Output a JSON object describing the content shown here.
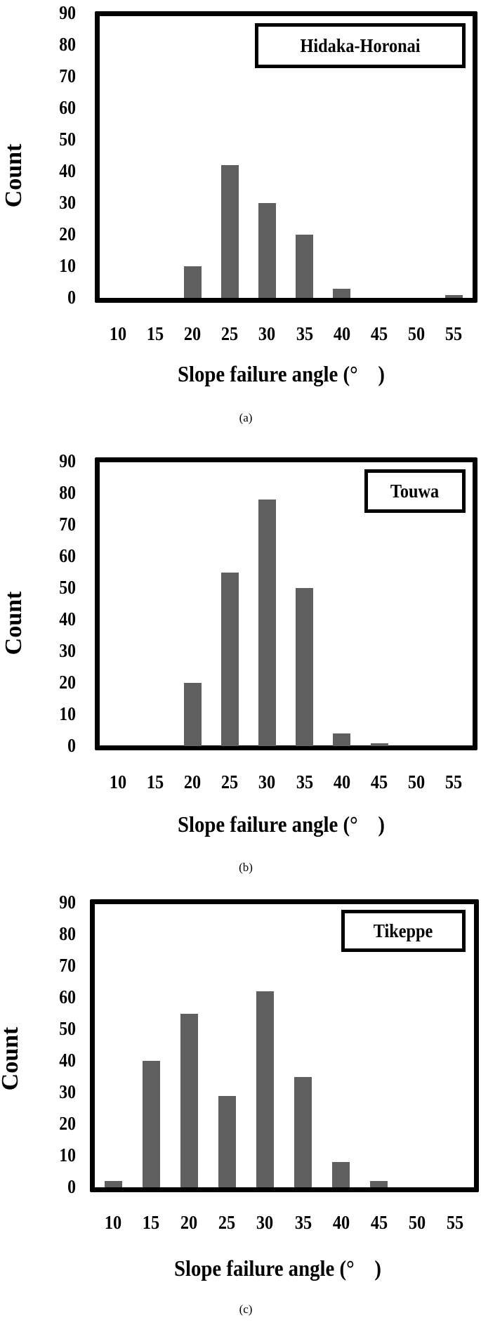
{
  "chart_data": [
    {
      "type": "bar",
      "panel": "(a)",
      "title": "Hidaka-Horonai",
      "xlabel": "Slope failure angle (° )",
      "ylabel": "Count",
      "categories": [
        "10",
        "15",
        "20",
        "25",
        "30",
        "35",
        "40",
        "45",
        "50",
        "55"
      ],
      "values": [
        0,
        0,
        10,
        42,
        30,
        20,
        3,
        0,
        0,
        1
      ],
      "yticks": [
        "0",
        "10",
        "20",
        "30",
        "40",
        "50",
        "60",
        "70",
        "80",
        "90"
      ],
      "ylim": [
        0,
        90
      ],
      "grid": false,
      "legend_position": "top-right",
      "bar_color": "#5f5f5f"
    },
    {
      "type": "bar",
      "panel": "(b)",
      "title": "Touwa",
      "xlabel": "Slope failure angle (° )",
      "ylabel": "Count",
      "categories": [
        "10",
        "15",
        "20",
        "25",
        "30",
        "35",
        "40",
        "45",
        "50",
        "55"
      ],
      "values": [
        0,
        0,
        20,
        55,
        78,
        50,
        4,
        1,
        0,
        0
      ],
      "yticks": [
        "0",
        "10",
        "20",
        "30",
        "40",
        "50",
        "60",
        "70",
        "80",
        "90"
      ],
      "ylim": [
        0,
        90
      ],
      "grid": false,
      "legend_position": "top-right",
      "bar_color": "#5f5f5f"
    },
    {
      "type": "bar",
      "panel": "(c)",
      "title": "Tikeppe",
      "xlabel": "Slope failure angle (° )",
      "ylabel": "Count",
      "categories": [
        "10",
        "15",
        "20",
        "25",
        "30",
        "35",
        "40",
        "45",
        "50",
        "55"
      ],
      "values": [
        2,
        40,
        55,
        29,
        62,
        35,
        8,
        2,
        0,
        0
      ],
      "yticks": [
        "0",
        "10",
        "20",
        "30",
        "40",
        "50",
        "60",
        "70",
        "80",
        "90"
      ],
      "ylim": [
        0,
        90
      ],
      "grid": false,
      "legend_position": "top-right",
      "bar_color": "#5f5f5f"
    }
  ],
  "panels": [
    {
      "legend": "Hidaka-Horonai",
      "xlabel": "Slope failure angle (° )",
      "ylabel": "Count",
      "caption": "(a)"
    },
    {
      "legend": "Touwa",
      "xlabel": "Slope failure angle (° )",
      "ylabel": "Count",
      "caption": "(b)"
    },
    {
      "legend": "Tikeppe",
      "xlabel": "Slope failure angle (° )",
      "ylabel": "Count",
      "caption": "(c)"
    }
  ]
}
